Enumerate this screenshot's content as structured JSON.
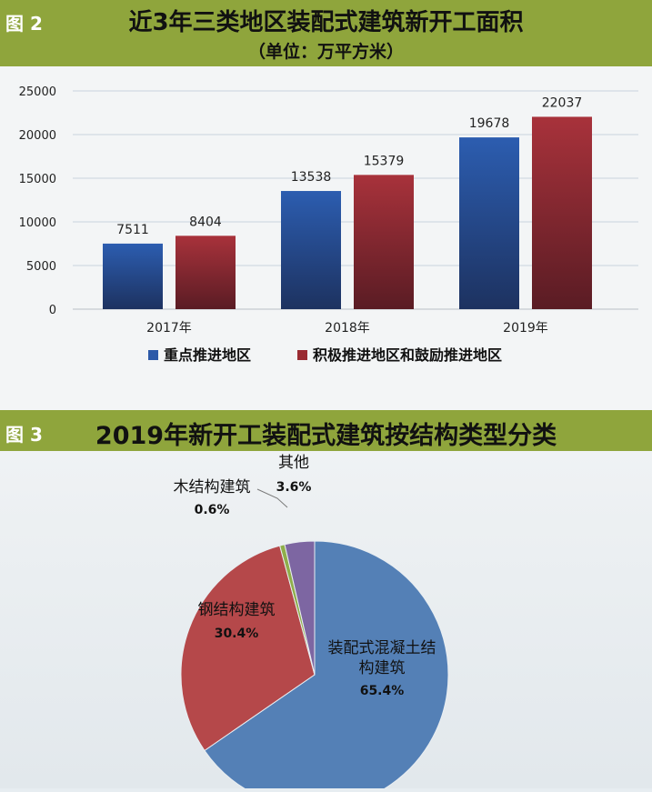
{
  "figure2": {
    "label": "图 2",
    "title": "近3年三类地区装配式建筑新开工面积",
    "subtitle": "（单位：万平方米）"
  },
  "figure3": {
    "label": "图 3",
    "title": "2019年新开工装配式建筑按结构类型分类"
  },
  "colors": {
    "banner": "#8fa53c",
    "blue": "#2d5aa8",
    "red": "#9a2b32",
    "pie_blue": "#5480b6",
    "pie_red": "#b5484a",
    "pie_green": "#8fae4a",
    "pie_purple": "#7d66a2"
  },
  "chart_data": [
    {
      "type": "bar",
      "categories": [
        "2017年",
        "2018年",
        "2019年"
      ],
      "series": [
        {
          "name": "重点推进地区",
          "values": [
            7511,
            13538,
            19678
          ]
        },
        {
          "name": "积极推进地区和鼓励推进地区",
          "values": [
            8404,
            15379,
            22037
          ]
        }
      ],
      "yticks": [
        "0",
        "5000",
        "10000",
        "15000",
        "20000",
        "25000"
      ],
      "ylim": [
        0,
        25000
      ],
      "grid": true,
      "legend": "bottom"
    },
    {
      "type": "pie",
      "slices": [
        {
          "label": "装配式混凝土结构建筑",
          "value": 65.4,
          "pct": "65.4%"
        },
        {
          "label": "钢结构建筑",
          "value": 30.4,
          "pct": "30.4%"
        },
        {
          "label": "木结构建筑",
          "value": 0.6,
          "pct": "0.6%"
        },
        {
          "label": "其他",
          "value": 3.6,
          "pct": "3.6%"
        }
      ]
    }
  ]
}
